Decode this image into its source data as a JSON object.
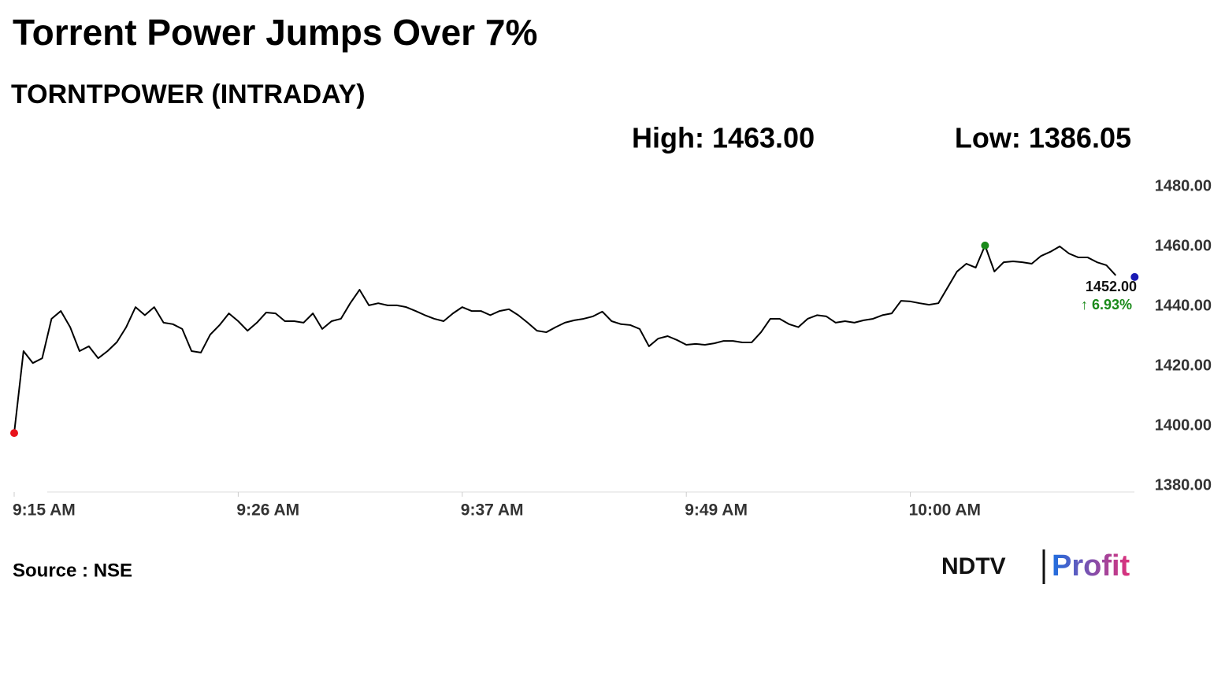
{
  "chart_data": {
    "type": "line",
    "title": "Torrent Power Jumps Over 7%",
    "subtitle": "TORNTPOWER (INTRADAY)",
    "high_text": "High: 1463.00",
    "low_text": "Low: 1386.05",
    "last_label": "1452.00",
    "change_label": "↑ 6.93%",
    "source": "Source : NSE",
    "logo": [
      "NDTV",
      "Profit"
    ],
    "color": "#000000",
    "low_color": "#e8141c",
    "high_color": "#1a8a1a",
    "last_color": "#1a1ab4",
    "change_color": "#1a8a1a",
    "categories": [
      "9:15 AM",
      null,
      null,
      null,
      null,
      null,
      null,
      null,
      null,
      null,
      null,
      null,
      null,
      null,
      null,
      null,
      null,
      null,
      null,
      null,
      null,
      null,
      null,
      null,
      "9:26 AM",
      null,
      null,
      null,
      null,
      null,
      null,
      null,
      null,
      null,
      null,
      null,
      null,
      null,
      null,
      null,
      null,
      null,
      null,
      null,
      null,
      null,
      null,
      null,
      "9:37 AM",
      null,
      null,
      null,
      null,
      null,
      null,
      null,
      null,
      null,
      null,
      null,
      null,
      null,
      null,
      null,
      null,
      null,
      null,
      null,
      null,
      null,
      null,
      null,
      "9:49 AM",
      null,
      null,
      null,
      null,
      null,
      null,
      null,
      null,
      null,
      null,
      null,
      null,
      null,
      null,
      null,
      null,
      null,
      null,
      null,
      null,
      null,
      null,
      null,
      "10:00 AM",
      null,
      null,
      null,
      null,
      null,
      null,
      null,
      null,
      null,
      null,
      null,
      null,
      null,
      null,
      null,
      null,
      null,
      null,
      null,
      null,
      null,
      null
    ],
    "values": [
      1397.6,
      1425,
      1421,
      1422.6,
      1435.8,
      1438.4,
      1433,
      1425,
      1426.6,
      1422.6,
      1425,
      1428,
      1433,
      1439.7,
      1437,
      1439.7,
      1434.5,
      1434,
      1432.4,
      1425,
      1424.5,
      1430.5,
      1433.7,
      1437.6,
      1435,
      1431.8,
      1434.5,
      1437.9,
      1437.6,
      1435,
      1435,
      1434.5,
      1437.6,
      1432.4,
      1435,
      1435.8,
      1441,
      1445.5,
      1440.3,
      1441,
      1440.3,
      1440.3,
      1439.7,
      1438.4,
      1437,
      1435.8,
      1435,
      1437.6,
      1439.7,
      1438.4,
      1438.4,
      1437,
      1438.4,
      1439,
      1437,
      1434.5,
      1431.8,
      1431.3,
      1433,
      1434.5,
      1435.3,
      1435.8,
      1436.6,
      1438.2,
      1435,
      1434,
      1433.7,
      1432.4,
      1426.6,
      1429.2,
      1430,
      1428.7,
      1427.1,
      1427.4,
      1427.1,
      1427.6,
      1428.4,
      1428.4,
      1427.9,
      1427.9,
      1431.3,
      1435.8,
      1435.8,
      1434,
      1433,
      1435.8,
      1437,
      1436.6,
      1434.5,
      1435,
      1434.5,
      1435.3,
      1435.8,
      1437,
      1437.6,
      1441.8,
      1441.6,
      1441,
      1440.5,
      1441,
      1446.3,
      1451.6,
      1454.2,
      1452.9,
      1460.3,
      1451.6,
      1454.7,
      1455,
      1454.7,
      1454.2,
      1456.8,
      1458.2,
      1460,
      1457.6,
      1456.3,
      1456.3,
      1454.7,
      1453.7,
      1450.3
    ],
    "ylim": [
      1380,
      1480
    ],
    "yticks": [
      {
        "value": 1380,
        "label": "1380.00"
      },
      {
        "value": 1400,
        "label": "1400.00"
      },
      {
        "value": 1420,
        "label": "1420.00"
      },
      {
        "value": 1440,
        "label": "1440.00"
      },
      {
        "value": 1460,
        "label": "1460.00"
      },
      {
        "value": 1480,
        "label": "1480.00"
      }
    ]
  }
}
